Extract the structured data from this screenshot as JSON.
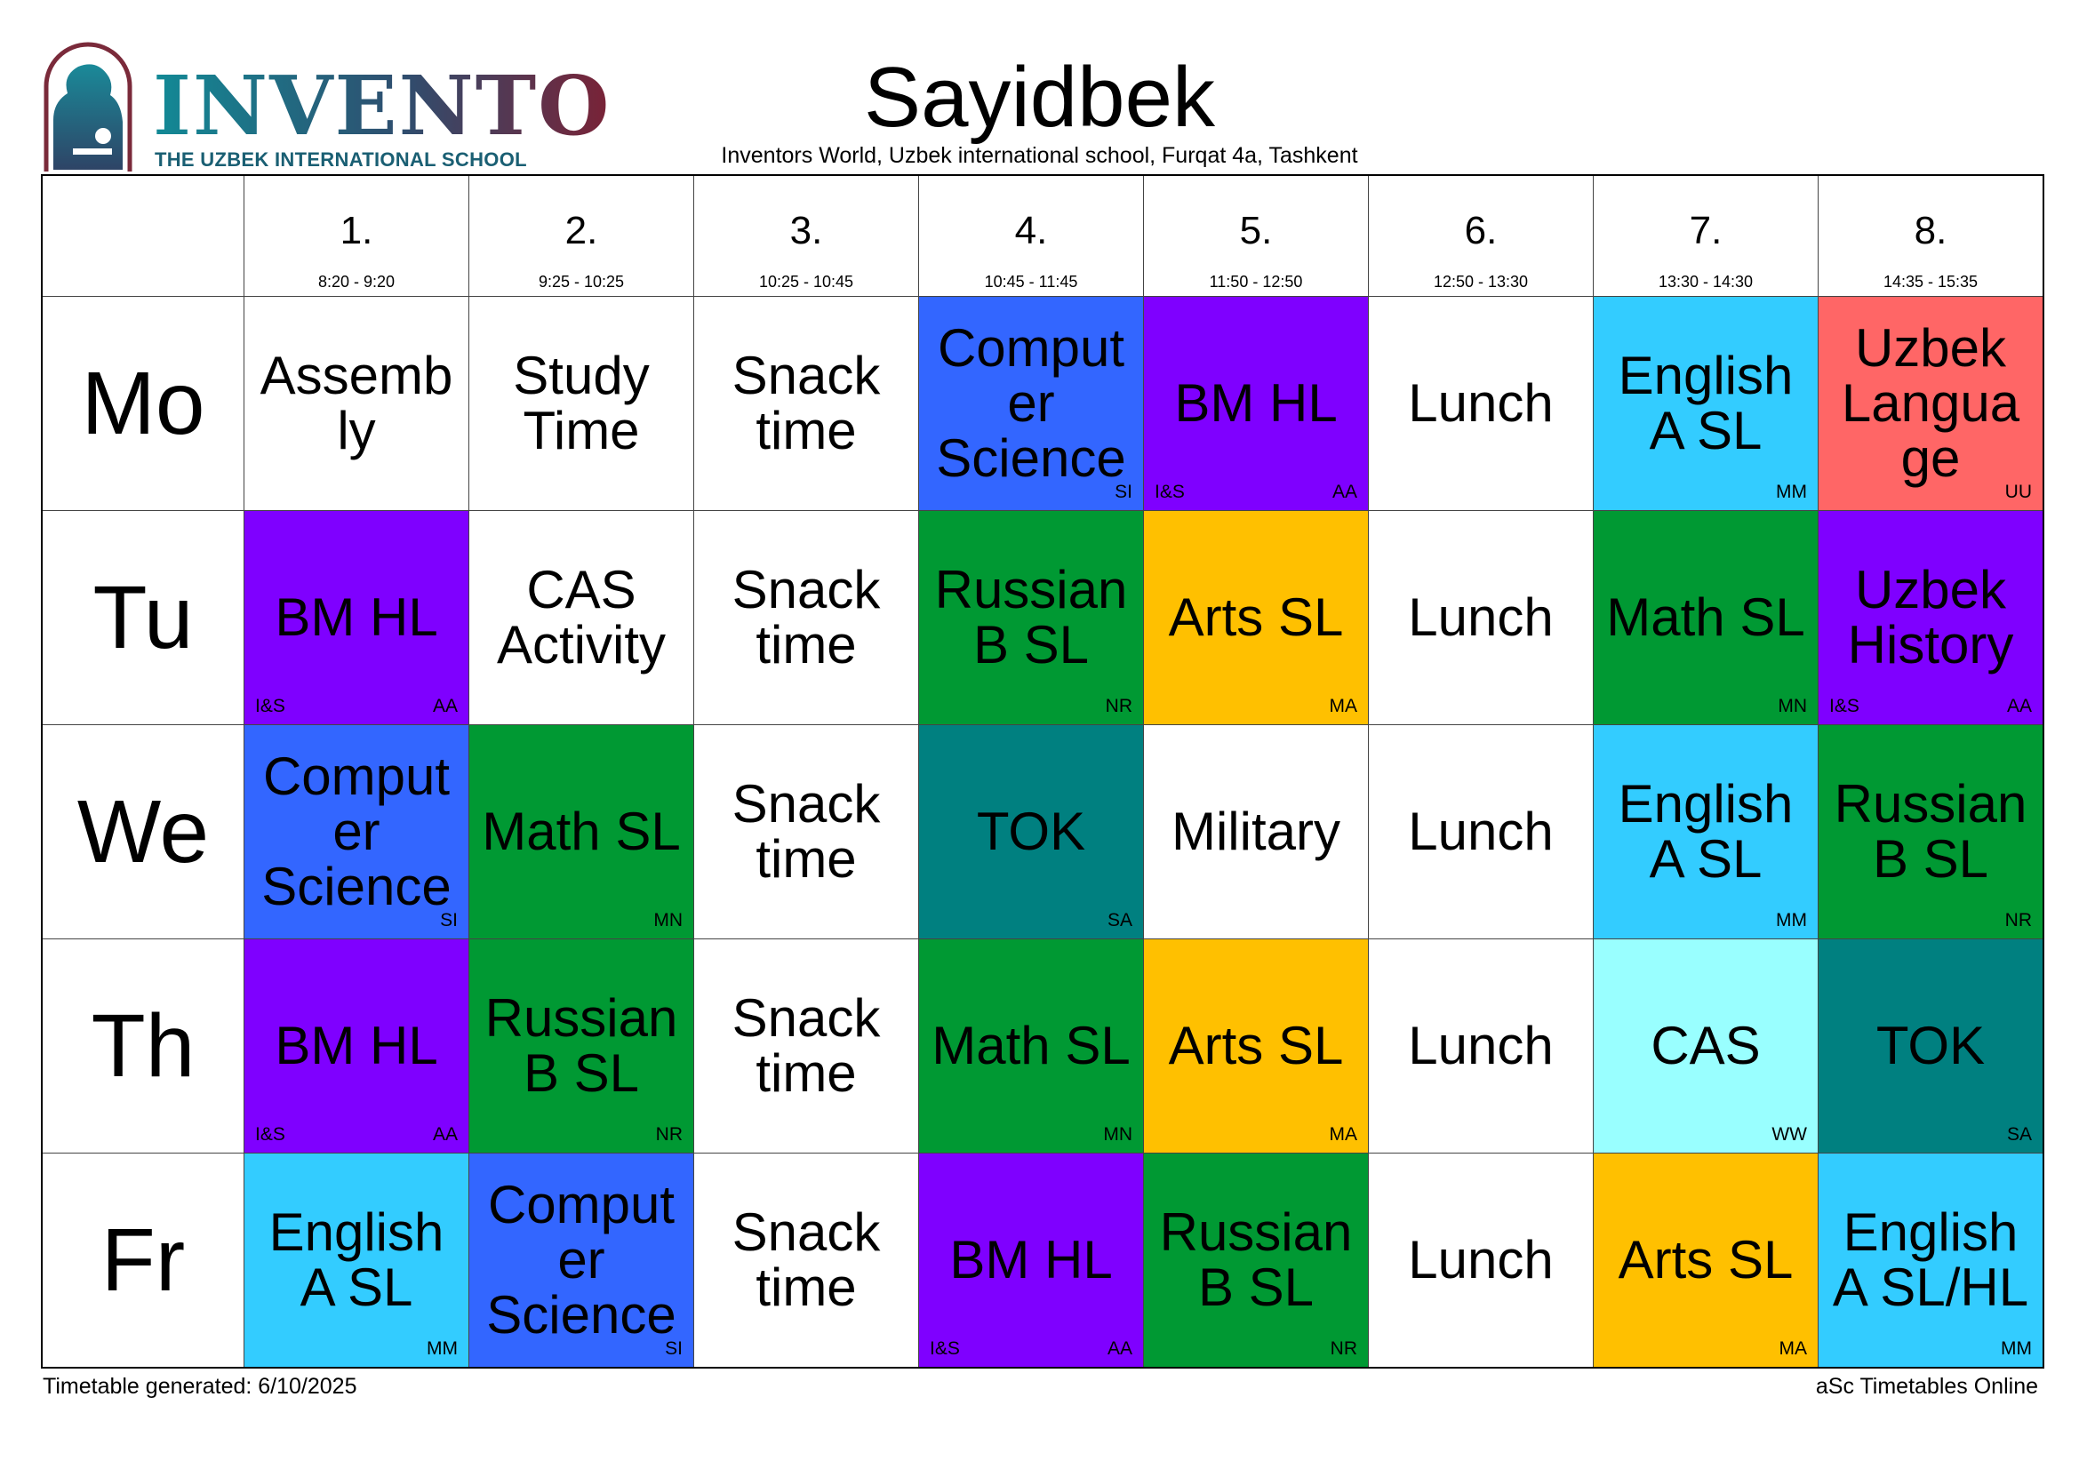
{
  "logo": {
    "name": "INVENTO",
    "subtitle": "THE UZBEK INTERNATIONAL SCHOOL"
  },
  "header": {
    "title": "Sayidbek",
    "subtitle": "Inventors World, Uzbek international school, Furqat 4a, Tashkent"
  },
  "periods": [
    {
      "num": "1.",
      "time": "8:20 - 9:20"
    },
    {
      "num": "2.",
      "time": "9:25 - 10:25"
    },
    {
      "num": "3.",
      "time": "10:25 - 10:45"
    },
    {
      "num": "4.",
      "time": "10:45 - 11:45"
    },
    {
      "num": "5.",
      "time": "11:50 - 12:50"
    },
    {
      "num": "6.",
      "time": "12:50 - 13:30"
    },
    {
      "num": "7.",
      "time": "13:30 - 14:30"
    },
    {
      "num": "8.",
      "time": "14:35 - 15:35"
    }
  ],
  "colors": {
    "white": "#ffffff",
    "purple": "#7f00ff",
    "blue": "#3366ff",
    "green": "#009933",
    "teal": "#008080",
    "amber": "#ffc000",
    "skyblue": "#33ccff",
    "lightcyan": "#99ffff",
    "salmon": "#ff6666"
  },
  "days": [
    {
      "day": "Mo",
      "lessons": [
        {
          "subject": "Assemb ly",
          "color": "white",
          "left": "",
          "right": ""
        },
        {
          "subject": "Study Time",
          "color": "white",
          "left": "",
          "right": ""
        },
        {
          "subject": "Snack time",
          "color": "white",
          "left": "",
          "right": ""
        },
        {
          "subject": "Comput er Science",
          "color": "blue",
          "left": "",
          "right": "SI"
        },
        {
          "subject": "BM HL",
          "color": "purple",
          "left": "I&S",
          "right": "AA"
        },
        {
          "subject": "Lunch",
          "color": "white",
          "left": "",
          "right": ""
        },
        {
          "subject": "English A SL",
          "color": "skyblue",
          "left": "",
          "right": "MM"
        },
        {
          "subject": "Uzbek Langua ge",
          "color": "salmon",
          "left": "",
          "right": "UU"
        }
      ]
    },
    {
      "day": "Tu",
      "lessons": [
        {
          "subject": "BM HL",
          "color": "purple",
          "left": "I&S",
          "right": "AA"
        },
        {
          "subject": "CAS Activity",
          "color": "white",
          "left": "",
          "right": ""
        },
        {
          "subject": "Snack time",
          "color": "white",
          "left": "",
          "right": ""
        },
        {
          "subject": "Russian B SL",
          "color": "green",
          "left": "",
          "right": "NR"
        },
        {
          "subject": "Arts SL",
          "color": "amber",
          "left": "",
          "right": "MA"
        },
        {
          "subject": "Lunch",
          "color": "white",
          "left": "",
          "right": ""
        },
        {
          "subject": "Math SL",
          "color": "green",
          "left": "",
          "right": "MN"
        },
        {
          "subject": "Uzbek History",
          "color": "purple",
          "left": "I&S",
          "right": "AA"
        }
      ]
    },
    {
      "day": "We",
      "lessons": [
        {
          "subject": "Comput er Science",
          "color": "blue",
          "left": "",
          "right": "SI"
        },
        {
          "subject": "Math SL",
          "color": "green",
          "left": "",
          "right": "MN"
        },
        {
          "subject": "Snack time",
          "color": "white",
          "left": "",
          "right": ""
        },
        {
          "subject": "TOK",
          "color": "teal",
          "left": "",
          "right": "SA"
        },
        {
          "subject": "Military",
          "color": "white",
          "left": "",
          "right": ""
        },
        {
          "subject": "Lunch",
          "color": "white",
          "left": "",
          "right": ""
        },
        {
          "subject": "English A SL",
          "color": "skyblue",
          "left": "",
          "right": "MM"
        },
        {
          "subject": "Russian B SL",
          "color": "green",
          "left": "",
          "right": "NR"
        }
      ]
    },
    {
      "day": "Th",
      "lessons": [
        {
          "subject": "BM HL",
          "color": "purple",
          "left": "I&S",
          "right": "AA"
        },
        {
          "subject": "Russian B SL",
          "color": "green",
          "left": "",
          "right": "NR"
        },
        {
          "subject": "Snack time",
          "color": "white",
          "left": "",
          "right": ""
        },
        {
          "subject": "Math SL",
          "color": "green",
          "left": "",
          "right": "MN"
        },
        {
          "subject": "Arts SL",
          "color": "amber",
          "left": "",
          "right": "MA"
        },
        {
          "subject": "Lunch",
          "color": "white",
          "left": "",
          "right": ""
        },
        {
          "subject": "CAS",
          "color": "lightcyan",
          "left": "",
          "right": "WW"
        },
        {
          "subject": "TOK",
          "color": "teal",
          "left": "",
          "right": "SA"
        }
      ]
    },
    {
      "day": "Fr",
      "lessons": [
        {
          "subject": "English A SL",
          "color": "skyblue",
          "left": "",
          "right": "MM"
        },
        {
          "subject": "Comput er Science",
          "color": "blue",
          "left": "",
          "right": "SI"
        },
        {
          "subject": "Snack time",
          "color": "white",
          "left": "",
          "right": ""
        },
        {
          "subject": "BM HL",
          "color": "purple",
          "left": "I&S",
          "right": "AA"
        },
        {
          "subject": "Russian B SL",
          "color": "green",
          "left": "",
          "right": "NR"
        },
        {
          "subject": "Lunch",
          "color": "white",
          "left": "",
          "right": ""
        },
        {
          "subject": "Arts SL",
          "color": "amber",
          "left": "",
          "right": "MA"
        },
        {
          "subject": "English A SL/HL",
          "color": "skyblue",
          "left": "",
          "right": "MM"
        }
      ]
    }
  ],
  "footer": {
    "generated": "Timetable generated: 6/10/2025",
    "credit": "aSc Timetables Online"
  }
}
